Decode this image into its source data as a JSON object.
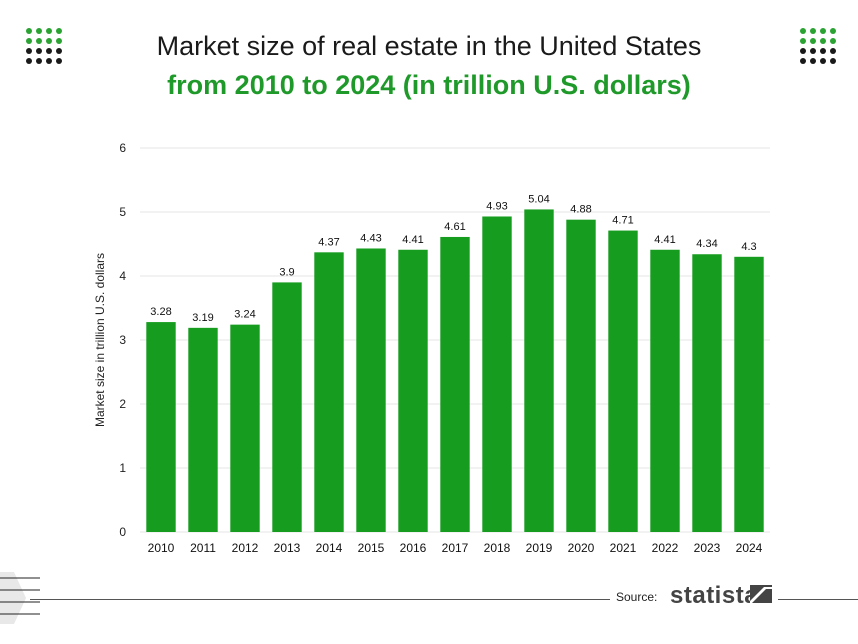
{
  "header": {
    "title": "Market size of real estate in the United States",
    "subtitle": "from 2010 to 2024 (in trillion U.S. dollars)"
  },
  "footer": {
    "source_label": "Source:",
    "brand": "statista"
  },
  "colors": {
    "bar": "#169c1e",
    "accent_green": "#1f9a2a",
    "grid": "#e6e6e6"
  },
  "chart_data": {
    "type": "bar",
    "title": "Market size of real estate in the United States",
    "subtitle": "from 2010 to 2024 (in trillion U.S. dollars)",
    "xlabel": "",
    "ylabel": "Market size in trillion U.S. dollars",
    "ylim": [
      0,
      6
    ],
    "yticks": [
      0,
      1,
      2,
      3,
      4,
      5,
      6
    ],
    "grid": true,
    "categories": [
      "2010",
      "2011",
      "2012",
      "2013",
      "2014",
      "2015",
      "2016",
      "2017",
      "2018",
      "2019",
      "2020",
      "2021",
      "2022",
      "2023",
      "2024"
    ],
    "values": [
      3.28,
      3.19,
      3.24,
      3.9,
      4.37,
      4.43,
      4.41,
      4.61,
      4.93,
      5.04,
      4.88,
      4.71,
      4.41,
      4.34,
      4.3
    ],
    "value_labels": [
      "3.28",
      "3.19",
      "3.24",
      "3.9",
      "4.37",
      "4.43",
      "4.41",
      "4.61",
      "4.93",
      "5.04",
      "4.88",
      "4.71",
      "4.41",
      "4.34",
      "4.3"
    ]
  }
}
